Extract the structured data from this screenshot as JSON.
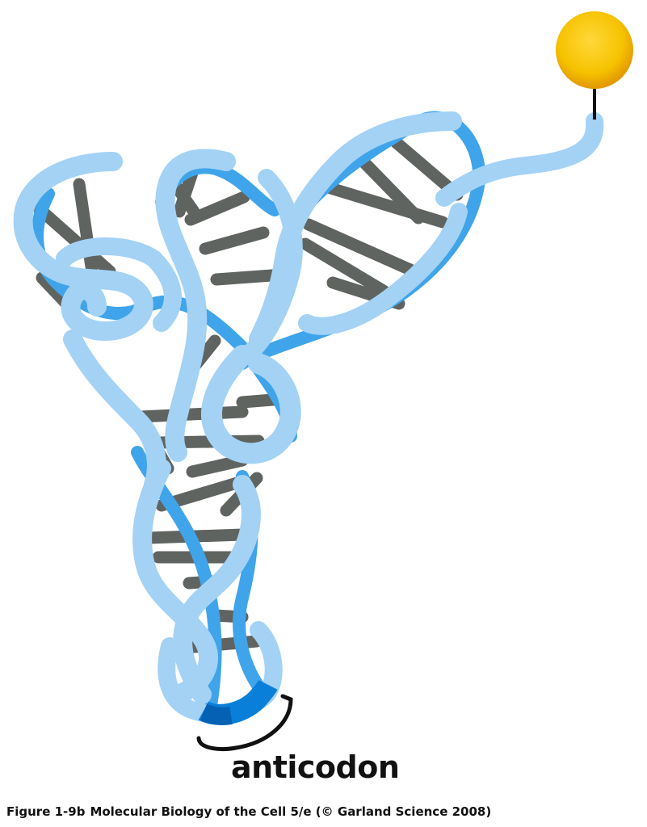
{
  "diagram": {
    "labels": {
      "anticodon": "anticodon"
    },
    "caption": {
      "figure_id": "Figure 1-9b",
      "text": "Molecular Biology of the Cell 5/e (© Garland Science 2008)"
    },
    "colors": {
      "ribbon_light": "#a3d2f5",
      "ribbon_dark": "#3fa4ea",
      "anticodon_segment": "#0a7fd9",
      "base_pairs": "#606461",
      "amino_acid_ball": "#f3b800",
      "bracket": "#111111"
    }
  }
}
